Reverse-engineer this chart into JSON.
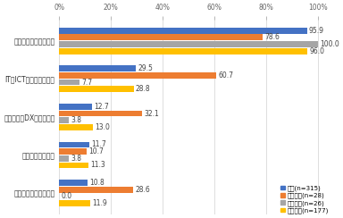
{
  "categories": [
    "コロナ禁の対応として",
    "IT・ICT教育推進のため",
    "大学全体のDX推進のため",
    "休講を減らすため",
    "学生の学力向上のため"
  ],
  "series": [
    {
      "label": "全体(n=315)",
      "color": "#4472C4",
      "values": [
        95.9,
        29.5,
        12.7,
        11.7,
        10.8
      ]
    },
    {
      "label": "国立大学(n=28)",
      "color": "#ED7D31",
      "values": [
        78.6,
        60.7,
        32.1,
        10.7,
        28.6
      ]
    },
    {
      "label": "公立大学(n=26)",
      "color": "#A5A5A5",
      "values": [
        100.0,
        7.7,
        3.8,
        3.8,
        0.0
      ]
    },
    {
      "label": "私立大学(n=177)",
      "color": "#FFC000",
      "values": [
        96.0,
        28.8,
        13.0,
        11.3,
        11.9
      ]
    }
  ],
  "xlim": [
    0,
    105
  ],
  "xticks": [
    0,
    20,
    40,
    60,
    80,
    100
  ],
  "xticklabels": [
    "0%",
    "20%",
    "40%",
    "60%",
    "80%",
    "100%"
  ],
  "bar_height": 0.16,
  "bar_spacing": 0.02,
  "background_color": "#ffffff",
  "grid_color": "#d0d0d0",
  "label_fontsize": 5.5,
  "tick_fontsize": 5.5,
  "legend_fontsize": 5.0
}
